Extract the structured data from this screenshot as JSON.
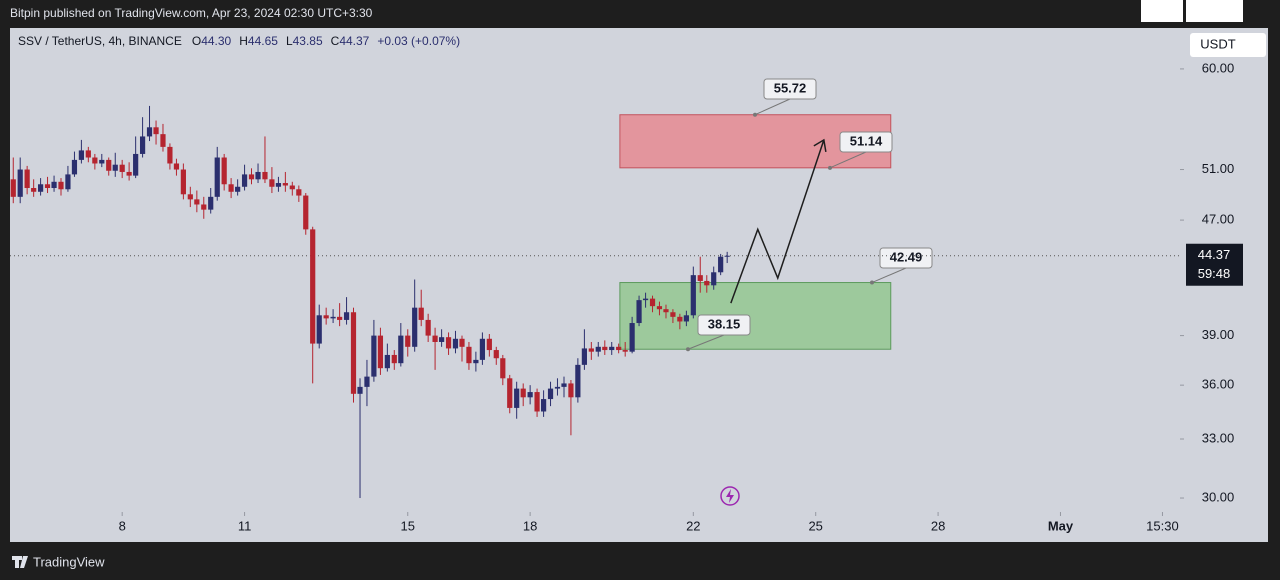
{
  "chart_data": {
    "type": "candlestick",
    "title": "Bitpin published on TradingView.com, Apr 23, 2024 02:30 UTC+3:30",
    "symbol": "SSV / TetherUS, 4h, BINANCE",
    "header": {
      "labels": [
        "O",
        "H",
        "L",
        "C"
      ],
      "values": [
        44.3,
        44.65,
        43.85,
        44.37
      ],
      "value_labels": [
        "44.30",
        "44.65",
        "43.85",
        "44.37"
      ],
      "change": "+0.03 (+0.07%)"
    },
    "currency": "USDT",
    "last_price": {
      "value": 44.37,
      "label": "44.37"
    },
    "countdown": "59:48",
    "high": [
      52.0,
      52.0,
      51.3,
      50.2,
      50.3,
      50.4,
      50.5,
      50.3,
      51.3,
      52.5,
      53.5,
      52.9,
      52.3,
      52.3,
      52.0,
      52.4,
      51.8,
      51.6,
      53.8,
      55.5,
      56.52,
      55.2,
      54.9,
      53.2,
      51.9,
      51.5,
      49.6,
      49.3,
      48.8,
      49.5,
      52.9,
      52.3,
      50.3,
      50.2,
      51.4,
      51.1,
      51.5,
      53.8,
      51.2,
      50.4,
      50.8,
      50.0,
      49.7,
      49.1,
      46.5,
      41.0,
      40.8,
      40.7,
      41.1,
      41.5,
      40.8,
      36.4,
      37.5,
      40.0,
      39.5,
      38.5,
      38.1,
      39.8,
      39.4,
      42.7,
      42.0,
      40.4,
      39.5,
      39.4,
      39.2,
      39.3,
      39.0,
      38.6,
      38.0,
      39.2,
      39.1,
      38.3,
      37.8,
      36.6,
      36.2,
      36.1,
      36.0,
      35.8,
      35.7,
      36.2,
      36.4,
      36.5,
      36.3,
      37.6,
      39.4,
      38.6,
      38.6,
      38.7,
      38.6,
      38.5,
      38.6,
      40.2,
      41.6,
      41.8,
      41.6,
      41.2,
      41.0,
      40.7,
      40.4,
      40.6,
      43.6,
      44.3,
      43.0,
      43.6,
      44.5,
      44.65
    ],
    "low": [
      48.3,
      48.3,
      49.0,
      48.8,
      48.9,
      49.1,
      49.2,
      48.9,
      49.2,
      50.4,
      51.5,
      51.6,
      51.0,
      51.2,
      50.5,
      50.4,
      50.3,
      50.1,
      50.3,
      52.0,
      53.4,
      53.1,
      52.5,
      51.0,
      50.5,
      48.6,
      48.0,
      47.6,
      47.1,
      47.5,
      48.5,
      49.3,
      48.7,
      48.9,
      49.3,
      49.8,
      49.9,
      49.9,
      49.1,
      49.2,
      49.2,
      48.9,
      48.4,
      45.9,
      36.1,
      38.2,
      39.7,
      39.8,
      39.6,
      39.7,
      35.0,
      30.0,
      34.8,
      36.2,
      36.6,
      36.8,
      36.9,
      37.1,
      37.7,
      38.0,
      39.6,
      38.6,
      36.9,
      38.3,
      37.8,
      37.9,
      37.4,
      36.9,
      36.8,
      37.2,
      37.7,
      37.2,
      36.0,
      34.4,
      34.1,
      34.8,
      34.9,
      34.2,
      34.2,
      34.8,
      35.4,
      35.3,
      33.2,
      35.0,
      36.9,
      37.5,
      37.7,
      37.8,
      37.8,
      37.9,
      37.7,
      37.9,
      39.6,
      40.8,
      40.5,
      40.3,
      40.1,
      39.8,
      39.4,
      39.6,
      40.1,
      41.8,
      41.8,
      42.0,
      43.0,
      43.85
    ],
    "log_scale": true,
    "up_color": "#2b2f6e",
    "down_color": "#b5242f",
    "xlim": [
      5.25,
      33.93
    ],
    "xticks": [
      8,
      11,
      15,
      18,
      22,
      25,
      28,
      {
        "value": 31,
        "label": "May"
      },
      {
        "value": 33.5,
        "label": "15:30"
      }
    ],
    "ylim": [
      29.33,
      64.1
    ],
    "yticks": [
      {
        "value": 60,
        "label": "60.00"
      },
      {
        "value": 51,
        "label": "51.00"
      },
      {
        "value": 47,
        "label": "47.00"
      },
      {
        "value": 39,
        "label": "39.00"
      },
      {
        "value": 36,
        "label": "36.00"
      },
      {
        "value": 33,
        "label": "33.00"
      },
      {
        "value": 30,
        "label": "30.00"
      }
    ],
    "x": [
      5.33,
      5.5,
      5.67,
      5.83,
      6,
      6.17,
      6.33,
      6.5,
      6.67,
      6.83,
      7,
      7.17,
      7.33,
      7.5,
      7.67,
      7.83,
      8,
      8.17,
      8.33,
      8.5,
      8.67,
      8.83,
      9,
      9.17,
      9.33,
      9.5,
      9.67,
      9.83,
      10,
      10.17,
      10.33,
      10.5,
      10.67,
      10.83,
      11,
      11.17,
      11.33,
      11.5,
      11.67,
      11.83,
      12,
      12.17,
      12.33,
      12.5,
      12.67,
      12.83,
      13,
      13.17,
      13.33,
      13.5,
      13.67,
      13.83,
      14,
      14.17,
      14.33,
      14.5,
      14.67,
      14.83,
      15,
      15.17,
      15.33,
      15.5,
      15.67,
      15.83,
      16,
      16.17,
      16.33,
      16.5,
      16.67,
      16.83,
      17,
      17.17,
      17.33,
      17.5,
      17.67,
      17.83,
      18,
      18.17,
      18.33,
      18.5,
      18.67,
      18.83,
      19,
      19.17,
      19.33,
      19.5,
      19.67,
      19.83,
      20,
      20.17,
      20.33,
      20.5,
      20.67,
      20.83,
      21,
      21.17,
      21.33,
      21.5,
      21.67,
      21.83,
      22,
      22.17,
      22.33,
      22.5,
      22.67,
      22.83
    ],
    "open": [
      50.2,
      48.8,
      51.0,
      49.5,
      49.2,
      49.8,
      49.5,
      50.0,
      49.4,
      50.6,
      51.8,
      52.6,
      52.0,
      51.5,
      51.8,
      50.9,
      51.4,
      50.8,
      50.5,
      52.3,
      53.8,
      54.6,
      54.0,
      52.9,
      51.5,
      51.0,
      49.0,
      48.6,
      48.2,
      47.8,
      48.8,
      52.0,
      49.8,
      49.2,
      49.6,
      50.6,
      50.2,
      50.8,
      50.2,
      49.6,
      49.9,
      49.7,
      49.4,
      48.9,
      46.3,
      38.5,
      40.3,
      40.1,
      40.2,
      40.0,
      40.5,
      35.5,
      35.9,
      36.5,
      39.0,
      37.0,
      37.8,
      37.3,
      39.0,
      38.3,
      40.8,
      40.0,
      39.0,
      38.6,
      38.9,
      38.2,
      38.8,
      38.3,
      37.3,
      37.5,
      38.8,
      38.1,
      37.6,
      36.4,
      34.7,
      35.8,
      35.3,
      35.6,
      34.5,
      35.2,
      35.8,
      35.9,
      36.1,
      35.3,
      37.2,
      38.2,
      38.0,
      38.3,
      38.1,
      38.3,
      38.1,
      38.0,
      39.8,
      41.3,
      41.4,
      40.9,
      40.7,
      40.5,
      40.2,
      39.9,
      40.3,
      43.0,
      42.6,
      42.3,
      43.2,
      44.3
    ],
    "close": [
      48.8,
      51.0,
      49.5,
      49.2,
      49.8,
      49.5,
      50.0,
      49.4,
      50.6,
      51.8,
      52.6,
      52.0,
      51.5,
      51.8,
      50.9,
      51.4,
      50.8,
      50.5,
      52.3,
      53.8,
      54.6,
      54.0,
      52.9,
      51.5,
      51.0,
      49.0,
      48.6,
      48.2,
      47.8,
      48.8,
      52.0,
      49.8,
      49.2,
      49.6,
      50.6,
      50.2,
      50.8,
      50.2,
      49.6,
      49.9,
      49.7,
      49.4,
      48.9,
      46.3,
      38.5,
      40.3,
      40.1,
      40.2,
      40.0,
      40.5,
      35.5,
      35.9,
      36.5,
      39.0,
      37.0,
      37.8,
      37.3,
      39.0,
      38.3,
      40.8,
      40.0,
      39.0,
      38.6,
      38.9,
      38.2,
      38.8,
      38.3,
      37.3,
      37.5,
      38.8,
      38.1,
      37.6,
      36.4,
      34.7,
      35.8,
      35.3,
      35.6,
      34.5,
      35.2,
      35.8,
      35.9,
      36.1,
      35.3,
      37.2,
      38.2,
      38.0,
      38.3,
      38.1,
      38.3,
      38.1,
      38.0,
      39.8,
      41.3,
      41.4,
      40.9,
      40.7,
      40.5,
      40.2,
      39.9,
      40.3,
      43.0,
      42.6,
      42.3,
      43.2,
      44.3,
      44.37
    ],
    "zones": [
      {
        "top": 55.72,
        "bottom": 51.14,
        "x": [
          20.2,
          26.84
        ],
        "color": "#e3959d",
        "border": "#c2525c"
      },
      {
        "top": 42.49,
        "bottom": 38.15,
        "x": [
          20.2,
          26.84
        ],
        "color": "#9dc99c",
        "border": "#5c9a5c"
      }
    ],
    "arrow": {
      "x": [
        22.92,
        23.58,
        24.07,
        25.2
      ],
      "y": [
        41.1,
        46.3,
        42.8,
        53.5
      ],
      "color": "#1e1e1e"
    },
    "footer": "TradingView"
  }
}
